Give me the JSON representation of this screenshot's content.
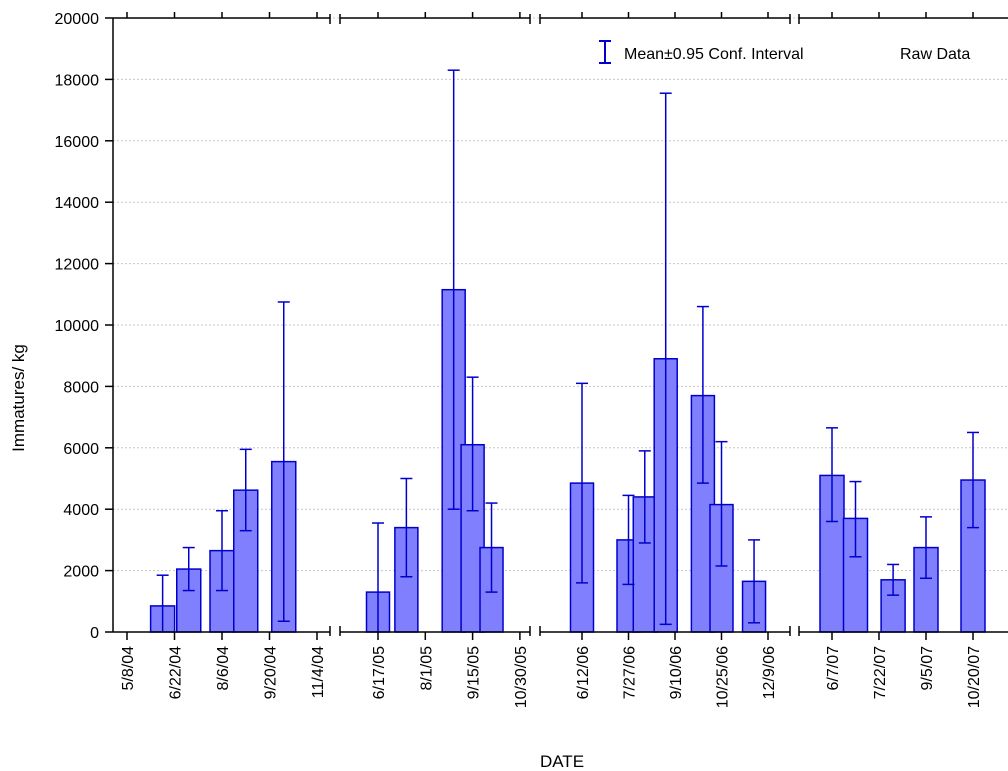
{
  "chart_data": {
    "type": "bar",
    "xlabel": "DATE",
    "ylabel": "Immatures/ kg",
    "ylim": [
      0,
      20000
    ],
    "y_ticks": [
      0,
      2000,
      4000,
      6000,
      8000,
      10000,
      12000,
      14000,
      16000,
      18000,
      20000
    ],
    "grid": true,
    "legend": {
      "position": "top-right",
      "entries": [
        "Mean±0.95 Conf. Interval",
        "Raw Data"
      ]
    },
    "colors": {
      "bar_fill": "#8080ff",
      "bar_edge": "#0000cc",
      "error_bar": "#0000cc",
      "grid": "#c8c8c8"
    },
    "panels": [
      {
        "tick_labels": [
          "5/8/04",
          "6/22/04",
          "8/6/04",
          "9/20/04",
          "11/4/04"
        ],
        "bars": [
          {
            "x_tick": 0.75,
            "mean": 850,
            "ci_low": 0,
            "ci_high": 1850
          },
          {
            "x_tick": 1.3,
            "mean": 2050,
            "ci_low": 1350,
            "ci_high": 2750
          },
          {
            "x_tick": 2.0,
            "mean": 2650,
            "ci_low": 1350,
            "ci_high": 3950
          },
          {
            "x_tick": 2.5,
            "mean": 4620,
            "ci_low": 3300,
            "ci_high": 5950
          },
          {
            "x_tick": 3.3,
            "mean": 5550,
            "ci_low": 350,
            "ci_high": 10750
          }
        ]
      },
      {
        "tick_labels": [
          "6/17/05",
          "8/1/05",
          "9/15/05",
          "10/30/05"
        ],
        "bars": [
          {
            "x_tick": 0.0,
            "mean": 1300,
            "ci_low": 0,
            "ci_high": 3550
          },
          {
            "x_tick": 0.6,
            "mean": 3400,
            "ci_low": 1800,
            "ci_high": 5000
          },
          {
            "x_tick": 1.6,
            "mean": 11150,
            "ci_low": 4000,
            "ci_high": 18300
          },
          {
            "x_tick": 2.0,
            "mean": 6100,
            "ci_low": 3950,
            "ci_high": 8300
          },
          {
            "x_tick": 2.4,
            "mean": 2750,
            "ci_low": 1300,
            "ci_high": 4200
          }
        ]
      },
      {
        "tick_labels": [
          "6/12/06",
          "7/27/06",
          "9/10/06",
          "10/25/06",
          "12/9/06"
        ],
        "bars": [
          {
            "x_tick": 0.0,
            "mean": 4850,
            "ci_low": 1600,
            "ci_high": 8100
          },
          {
            "x_tick": 1.0,
            "mean": 3000,
            "ci_low": 1550,
            "ci_high": 4450
          },
          {
            "x_tick": 1.35,
            "mean": 4400,
            "ci_low": 2900,
            "ci_high": 5900
          },
          {
            "x_tick": 1.8,
            "mean": 8900,
            "ci_low": 250,
            "ci_high": 17550
          },
          {
            "x_tick": 2.6,
            "mean": 7700,
            "ci_low": 4850,
            "ci_high": 10600
          },
          {
            "x_tick": 3.0,
            "mean": 4150,
            "ci_low": 2150,
            "ci_high": 6200
          },
          {
            "x_tick": 3.7,
            "mean": 1650,
            "ci_low": 300,
            "ci_high": 3000
          }
        ]
      },
      {
        "tick_labels": [
          "6/7/07",
          "7/22/07",
          "9/5/07",
          "10/20/07"
        ],
        "bars": [
          {
            "x_tick": 0.0,
            "mean": 5100,
            "ci_low": 3600,
            "ci_high": 6650
          },
          {
            "x_tick": 0.5,
            "mean": 3700,
            "ci_low": 2450,
            "ci_high": 4900
          },
          {
            "x_tick": 1.3,
            "mean": 1700,
            "ci_low": 1200,
            "ci_high": 2200
          },
          {
            "x_tick": 2.0,
            "mean": 2750,
            "ci_low": 1750,
            "ci_high": 3750
          },
          {
            "x_tick": 3.0,
            "mean": 4950,
            "ci_low": 3400,
            "ci_high": 6500
          }
        ]
      }
    ]
  }
}
